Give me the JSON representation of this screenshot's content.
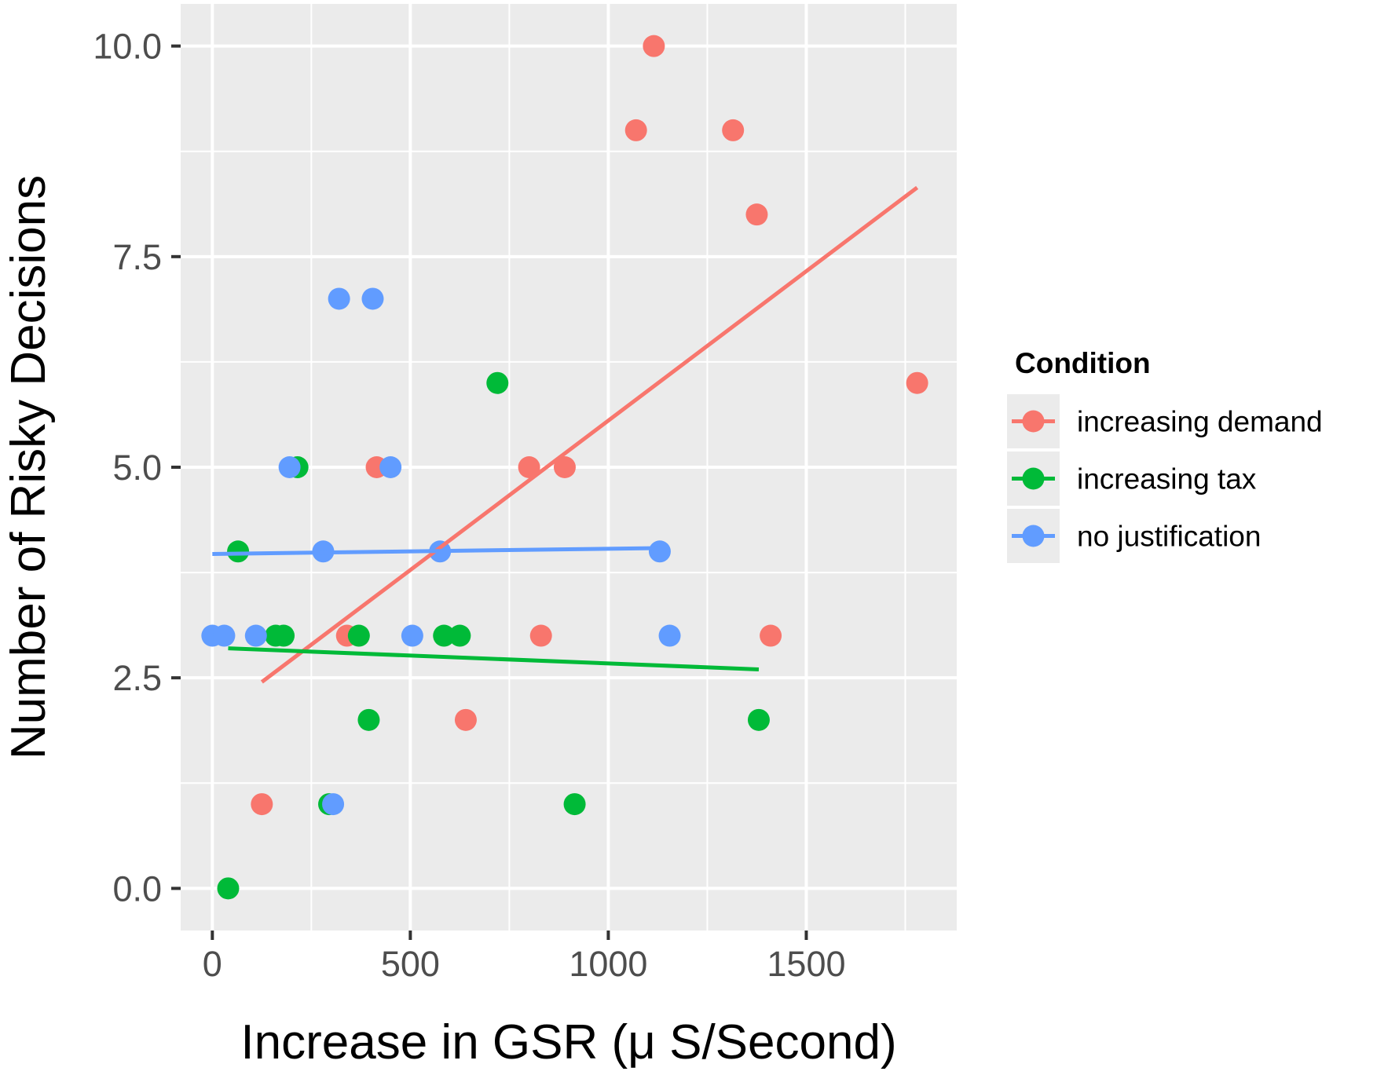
{
  "chart_data": {
    "type": "scatter",
    "title": "",
    "xlabel": "Increase in GSR (μ S/Second)",
    "ylabel": "Number of Risky Decisions",
    "xlim": [
      -80,
      1880
    ],
    "ylim": [
      -0.5,
      10.5
    ],
    "x_ticks": [
      0,
      500,
      1000,
      1500
    ],
    "x_tick_labels": [
      "0",
      "500",
      "1000",
      "1500"
    ],
    "y_ticks": [
      0,
      2.5,
      5,
      7.5,
      10
    ],
    "y_tick_labels": [
      "0.0",
      "2.5",
      "5.0",
      "7.5",
      "10.0"
    ],
    "grid": true,
    "legend": {
      "title": "Condition",
      "position": "right"
    },
    "series": [
      {
        "name": "increasing demand",
        "color": "#F8766D",
        "points": [
          {
            "x": 125,
            "y": 1
          },
          {
            "x": 340,
            "y": 3
          },
          {
            "x": 415,
            "y": 5
          },
          {
            "x": 640,
            "y": 2
          },
          {
            "x": 800,
            "y": 5
          },
          {
            "x": 830,
            "y": 3
          },
          {
            "x": 890,
            "y": 5
          },
          {
            "x": 1070,
            "y": 9
          },
          {
            "x": 1115,
            "y": 10
          },
          {
            "x": 1315,
            "y": 9
          },
          {
            "x": 1375,
            "y": 8
          },
          {
            "x": 1410,
            "y": 3
          },
          {
            "x": 1780,
            "y": 6
          }
        ],
        "trend": {
          "x": [
            125,
            1780
          ],
          "y": [
            2.45,
            8.32
          ]
        }
      },
      {
        "name": "increasing tax",
        "color": "#00BA38",
        "points": [
          {
            "x": 40,
            "y": 0
          },
          {
            "x": 65,
            "y": 4
          },
          {
            "x": 160,
            "y": 3
          },
          {
            "x": 180,
            "y": 3
          },
          {
            "x": 215,
            "y": 5
          },
          {
            "x": 295,
            "y": 1
          },
          {
            "x": 370,
            "y": 3
          },
          {
            "x": 395,
            "y": 2
          },
          {
            "x": 585,
            "y": 3
          },
          {
            "x": 625,
            "y": 3
          },
          {
            "x": 720,
            "y": 6
          },
          {
            "x": 915,
            "y": 1
          },
          {
            "x": 1380,
            "y": 2
          }
        ],
        "trend": {
          "x": [
            40,
            1380
          ],
          "y": [
            2.85,
            2.6
          ]
        }
      },
      {
        "name": "no justification",
        "color": "#619CFF",
        "points": [
          {
            "x": 0,
            "y": 3
          },
          {
            "x": 30,
            "y": 3
          },
          {
            "x": 110,
            "y": 3
          },
          {
            "x": 195,
            "y": 5
          },
          {
            "x": 280,
            "y": 4
          },
          {
            "x": 305,
            "y": 1
          },
          {
            "x": 320,
            "y": 7
          },
          {
            "x": 405,
            "y": 7
          },
          {
            "x": 450,
            "y": 5
          },
          {
            "x": 505,
            "y": 3
          },
          {
            "x": 575,
            "y": 4
          },
          {
            "x": 1130,
            "y": 4
          },
          {
            "x": 1155,
            "y": 3
          }
        ],
        "trend": {
          "x": [
            0,
            1130
          ],
          "y": [
            3.97,
            4.04
          ]
        }
      }
    ]
  }
}
